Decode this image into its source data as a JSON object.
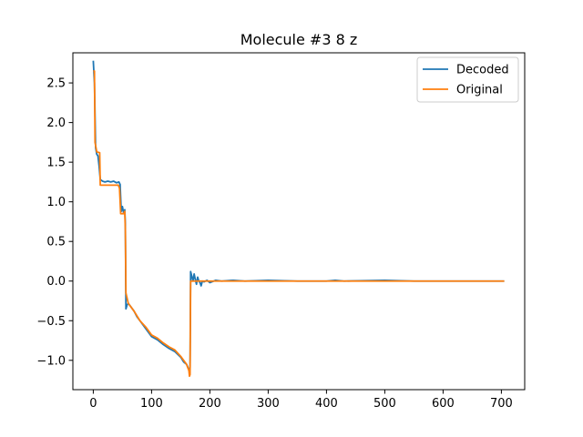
{
  "chart_data": {
    "type": "line",
    "title": "Molecule #3 8 z",
    "xlabel": "",
    "ylabel": "",
    "xlim": [
      -35,
      740
    ],
    "ylim": [
      -1.37,
      2.88
    ],
    "x_ticks": [
      0,
      100,
      200,
      300,
      400,
      500,
      600,
      700
    ],
    "x_tick_labels": [
      "0",
      "100",
      "200",
      "300",
      "400",
      "500",
      "600",
      "700"
    ],
    "y_ticks": [
      -1.0,
      -0.5,
      0.0,
      0.5,
      1.0,
      1.5,
      2.0,
      2.5
    ],
    "y_tick_labels": [
      "−1.0",
      "−0.5",
      "0.0",
      "0.5",
      "1.0",
      "1.5",
      "2.0",
      "2.5"
    ],
    "grid": false,
    "legend_position": "upper right",
    "series": [
      {
        "name": "Decoded",
        "color": "#1f77b4",
        "points": [
          [
            0,
            2.78
          ],
          [
            2,
            2.5
          ],
          [
            4,
            1.68
          ],
          [
            6,
            1.6
          ],
          [
            8,
            1.58
          ],
          [
            10,
            1.45
          ],
          [
            12,
            1.28
          ],
          [
            16,
            1.26
          ],
          [
            20,
            1.25
          ],
          [
            25,
            1.26
          ],
          [
            30,
            1.25
          ],
          [
            35,
            1.26
          ],
          [
            40,
            1.24
          ],
          [
            44,
            1.25
          ],
          [
            46,
            1.22
          ],
          [
            48,
            0.88
          ],
          [
            50,
            0.94
          ],
          [
            52,
            0.86
          ],
          [
            54,
            0.9
          ],
          [
            55,
            0.72
          ],
          [
            56,
            -0.35
          ],
          [
            58,
            -0.3
          ],
          [
            60,
            -0.28
          ],
          [
            65,
            -0.33
          ],
          [
            70,
            -0.38
          ],
          [
            75,
            -0.45
          ],
          [
            80,
            -0.5
          ],
          [
            85,
            -0.55
          ],
          [
            90,
            -0.6
          ],
          [
            95,
            -0.65
          ],
          [
            100,
            -0.7
          ],
          [
            110,
            -0.74
          ],
          [
            120,
            -0.8
          ],
          [
            130,
            -0.85
          ],
          [
            140,
            -0.89
          ],
          [
            150,
            -0.96
          ],
          [
            155,
            -1.02
          ],
          [
            160,
            -1.05
          ],
          [
            163,
            -1.1
          ],
          [
            165,
            -1.12
          ],
          [
            166,
            -1.1
          ],
          [
            167,
            0.12
          ],
          [
            169,
            0.06
          ],
          [
            171,
            0.0
          ],
          [
            173,
            0.09
          ],
          [
            175,
            0.02
          ],
          [
            177,
            -0.04
          ],
          [
            179,
            0.05
          ],
          [
            181,
            0.0
          ],
          [
            183,
            -0.02
          ],
          [
            185,
            -0.06
          ],
          [
            187,
            0.0
          ],
          [
            190,
            -0.01
          ],
          [
            195,
            0.01
          ],
          [
            200,
            -0.02
          ],
          [
            210,
            0.01
          ],
          [
            220,
            0.0
          ],
          [
            240,
            0.01
          ],
          [
            260,
            0.0
          ],
          [
            300,
            0.01
          ],
          [
            350,
            0.0
          ],
          [
            400,
            0.0
          ],
          [
            415,
            0.01
          ],
          [
            430,
            0.0
          ],
          [
            500,
            0.01
          ],
          [
            550,
            0.0
          ],
          [
            600,
            0.0
          ],
          [
            650,
            0.0
          ],
          [
            705,
            0.0
          ]
        ]
      },
      {
        "name": "Original",
        "color": "#ff7f0e",
        "points": [
          [
            0,
            2.65
          ],
          [
            2,
            2.65
          ],
          [
            3,
            1.75
          ],
          [
            6,
            1.63
          ],
          [
            11,
            1.62
          ],
          [
            12,
            1.21
          ],
          [
            30,
            1.21
          ],
          [
            43,
            1.21
          ],
          [
            45,
            1.17
          ],
          [
            47,
            0.85
          ],
          [
            52,
            0.85
          ],
          [
            54,
            0.88
          ],
          [
            55,
            0.65
          ],
          [
            56,
            -0.15
          ],
          [
            60,
            -0.28
          ],
          [
            70,
            -0.38
          ],
          [
            80,
            -0.5
          ],
          [
            90,
            -0.58
          ],
          [
            100,
            -0.68
          ],
          [
            110,
            -0.72
          ],
          [
            120,
            -0.78
          ],
          [
            130,
            -0.83
          ],
          [
            140,
            -0.87
          ],
          [
            150,
            -0.95
          ],
          [
            160,
            -1.05
          ],
          [
            164,
            -1.13
          ],
          [
            165,
            -1.2
          ],
          [
            166,
            -1.18
          ],
          [
            167,
            0.0
          ],
          [
            200,
            0.0
          ],
          [
            300,
            0.0
          ],
          [
            400,
            0.0
          ],
          [
            500,
            0.0
          ],
          [
            600,
            0.0
          ],
          [
            705,
            0.0
          ]
        ]
      }
    ]
  }
}
